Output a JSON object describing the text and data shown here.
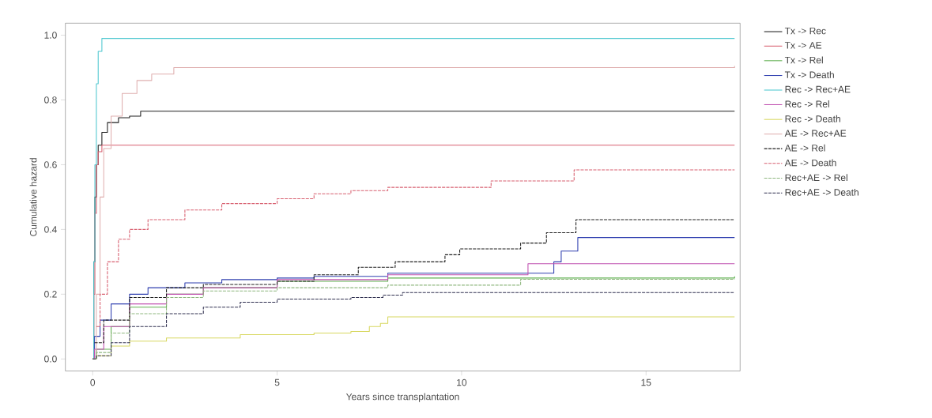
{
  "chart_data": {
    "type": "step",
    "xlabel": "Years since transplantation",
    "ylabel": "Cumulative hazard",
    "xlim": [
      -0.74,
      17.55
    ],
    "ylim": [
      -0.037,
      1.037
    ],
    "xticks": [
      0,
      5,
      10,
      15
    ],
    "yticks": [
      {
        "value": 0,
        "label": "0.0"
      },
      {
        "value": 0.2,
        "label": "0.2"
      },
      {
        "value": 0.4,
        "label": "0.4"
      },
      {
        "value": 0.6,
        "label": "0.6"
      },
      {
        "value": 0.8,
        "label": "0.8"
      },
      {
        "value": 1,
        "label": "1.0"
      }
    ],
    "legend": "right",
    "series": [
      {
        "name": "Tx -> Rec",
        "color": "#202020",
        "line_style": "solid",
        "x": [
          0,
          0.03,
          0.06,
          0.1,
          0.15,
          0.25,
          0.4,
          0.7,
          1.0,
          1.3,
          17.4
        ],
        "values": [
          0,
          0.3,
          0.5,
          0.6,
          0.66,
          0.7,
          0.73,
          0.745,
          0.75,
          0.765,
          0.765
        ]
      },
      {
        "name": "Tx -> AE",
        "color": "#d86070",
        "line_style": "solid",
        "x": [
          0,
          0.03,
          0.06,
          0.1,
          0.15,
          0.25,
          17.4
        ],
        "values": [
          0,
          0.2,
          0.45,
          0.6,
          0.64,
          0.66,
          0.66
        ]
      },
      {
        "name": "Tx -> Rel",
        "color": "#60b050",
        "line_style": "solid",
        "x": [
          0,
          0.1,
          0.5,
          1,
          2,
          3,
          5,
          8,
          17.4
        ],
        "values": [
          0,
          0.03,
          0.1,
          0.16,
          0.2,
          0.22,
          0.24,
          0.25,
          0.255
        ]
      },
      {
        "name": "Tx -> Death",
        "color": "#3040b0",
        "line_style": "solid",
        "x": [
          0,
          0.05,
          0.2,
          0.5,
          1,
          1.5,
          2.5,
          3.5,
          5,
          6,
          8,
          12.5,
          12.7,
          13.15,
          17.4
        ],
        "values": [
          0,
          0.07,
          0.12,
          0.17,
          0.2,
          0.22,
          0.235,
          0.245,
          0.25,
          0.255,
          0.265,
          0.3,
          0.333,
          0.375,
          0.375
        ]
      },
      {
        "name": "Rec -> Rec+AE",
        "color": "#50c8d0",
        "line_style": "solid",
        "x": [
          0,
          0.03,
          0.06,
          0.1,
          0.15,
          0.25,
          17.4
        ],
        "values": [
          0,
          0.3,
          0.6,
          0.85,
          0.95,
          0.99,
          0.99
        ]
      },
      {
        "name": "Rec -> Rel",
        "color": "#c050b0",
        "line_style": "solid",
        "x": [
          0,
          0.05,
          0.3,
          1,
          2,
          3,
          5,
          8,
          11.8,
          17.4
        ],
        "values": [
          0,
          0.03,
          0.1,
          0.17,
          0.2,
          0.22,
          0.245,
          0.26,
          0.294,
          0.294
        ]
      },
      {
        "name": "Rec -> Death",
        "color": "#d8d860",
        "line_style": "solid",
        "x": [
          0,
          0.1,
          0.5,
          1,
          2,
          4,
          6,
          7,
          7.5,
          7.8,
          8,
          17.4
        ],
        "values": [
          0,
          0.01,
          0.04,
          0.055,
          0.065,
          0.075,
          0.08,
          0.085,
          0.1,
          0.11,
          0.13,
          0.13
        ]
      },
      {
        "name": "AE -> Rec+AE",
        "color": "#e0b0b0",
        "line_style": "solid",
        "x": [
          0,
          0.1,
          0.2,
          0.3,
          0.5,
          0.8,
          1.2,
          1.6,
          2.2,
          17.4
        ],
        "values": [
          0,
          0.2,
          0.5,
          0.65,
          0.75,
          0.82,
          0.86,
          0.88,
          0.9,
          0.905
        ]
      },
      {
        "name": "AE -> Rel",
        "color": "#202020",
        "line_style": "dashed",
        "x": [
          0.05,
          0.3,
          1,
          2,
          3,
          5,
          6,
          7.2,
          8.2,
          9.55,
          9.95,
          11.6,
          12.3,
          13.1,
          17.4
        ],
        "values": [
          0.05,
          0.12,
          0.19,
          0.22,
          0.23,
          0.24,
          0.26,
          0.283,
          0.3,
          0.322,
          0.34,
          0.358,
          0.39,
          0.43,
          0.43
        ]
      },
      {
        "name": "AE -> Death",
        "color": "#d86070",
        "line_style": "dashed",
        "x": [
          0.1,
          0.2,
          0.4,
          0.7,
          1.0,
          1.5,
          2.5,
          3.5,
          5,
          6,
          7,
          8,
          10.8,
          13.05,
          17.4
        ],
        "values": [
          0.1,
          0.2,
          0.3,
          0.37,
          0.4,
          0.43,
          0.46,
          0.48,
          0.495,
          0.51,
          0.52,
          0.53,
          0.55,
          0.584,
          0.584
        ]
      },
      {
        "name": "Rec+AE -> Rel",
        "color": "#90b880",
        "line_style": "dashed",
        "x": [
          0,
          0.1,
          0.5,
          1,
          2,
          3,
          5,
          8,
          11.6,
          17.4
        ],
        "values": [
          0,
          0.02,
          0.08,
          0.14,
          0.19,
          0.21,
          0.22,
          0.228,
          0.246,
          0.246
        ]
      },
      {
        "name": "Rec+AE -> Death",
        "color": "#303050",
        "line_style": "dashed",
        "x": [
          0,
          0.1,
          0.5,
          1,
          2,
          3,
          4,
          5,
          7,
          7.87,
          8.4,
          17.4
        ],
        "values": [
          0,
          0.01,
          0.05,
          0.1,
          0.14,
          0.16,
          0.175,
          0.185,
          0.19,
          0.197,
          0.205,
          0.205
        ]
      }
    ]
  }
}
